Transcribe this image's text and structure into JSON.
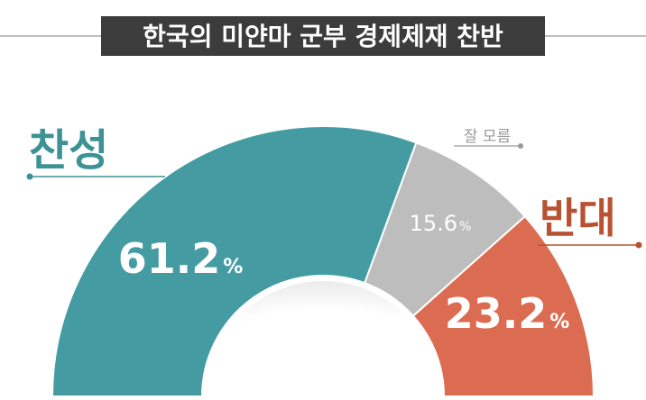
{
  "chart_data": {
    "type": "pie",
    "title": "한국의 미얀마 군부 경제제재 찬반",
    "shape": "semicircle-donut",
    "categories": [
      "찬성",
      "잘 모름",
      "반대"
    ],
    "values": [
      61.2,
      15.6,
      23.2
    ],
    "value_labels": [
      "61.2",
      "15.6",
      "23.2"
    ],
    "unit": "%",
    "colors": [
      "#449ca2",
      "#bdbdbd",
      "#dc6c51"
    ],
    "legend_placement": "callouts",
    "callout_colors": [
      "#3d9295",
      "#9a9a9a",
      "#b85233"
    ]
  },
  "style": {
    "title_bg": "#3c3c3c",
    "title_color": "#ffffff",
    "rule_color": "#a9a9a9",
    "hub_color": "#ffffff"
  }
}
